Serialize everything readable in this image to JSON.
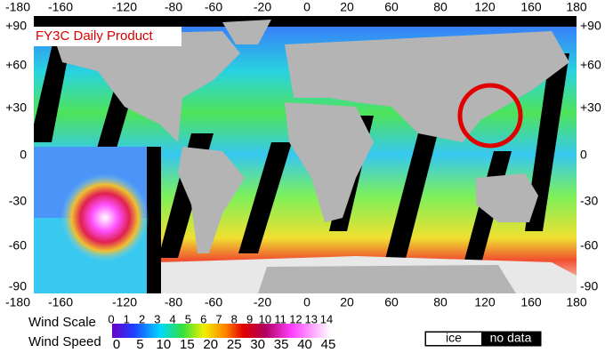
{
  "header": {
    "title": "FY3C Daily Product"
  },
  "axes": {
    "top": [
      "-180",
      "-160",
      "-120",
      "-80",
      "-60",
      "-20",
      "0",
      "20",
      "60",
      "80",
      "120",
      "160",
      "180"
    ],
    "bottom": [
      "-180",
      "-160",
      "-120",
      "-80",
      "-60",
      "-20",
      "0",
      "20",
      "60",
      "80",
      "120",
      "160",
      "180"
    ],
    "left": [
      "+90",
      "+60",
      "+30",
      "0",
      "-30",
      "-60",
      "-90"
    ],
    "right": [
      "+90",
      "+60",
      "+30",
      "0",
      "-30",
      "-60",
      "-90"
    ]
  },
  "legend": {
    "wind_scale_label": "Wind Scale",
    "wind_scale": [
      "0",
      "1",
      "2",
      "3",
      "4",
      "5",
      "6",
      "7",
      "8",
      "9",
      "10",
      "11",
      "12",
      "13",
      "14"
    ],
    "wind_speed_label": "Wind Speed",
    "wind_speed": [
      "0",
      "5",
      "10",
      "15",
      "20",
      "25",
      "30",
      "35",
      "40",
      "45"
    ],
    "ice": "ice",
    "no_data": "no data"
  }
}
